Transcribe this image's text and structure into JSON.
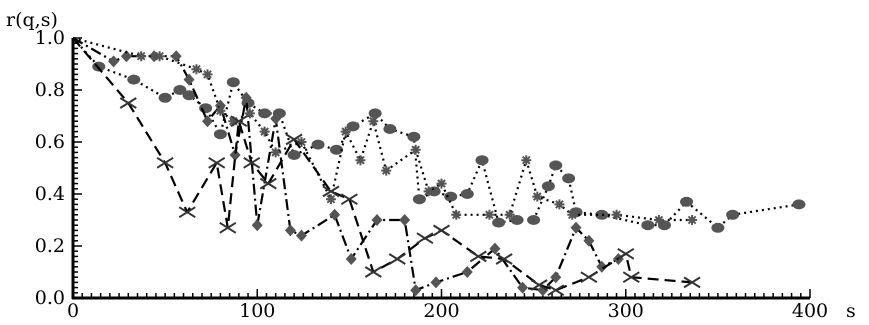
{
  "chart_data": {
    "type": "line",
    "title": "",
    "xlabel": "s",
    "ylabel": "r(q,s)",
    "xlim": [
      0,
      400
    ],
    "ylim": [
      0.0,
      1.0
    ],
    "x_ticks": [
      "0",
      "100",
      "200",
      "300",
      "400"
    ],
    "y_ticks": [
      "0.0",
      "0.2",
      "0.4",
      "0.6",
      "0.8",
      "1.0"
    ],
    "grid": false,
    "legend": "none",
    "series": [
      {
        "marker": "circle",
        "line_style": "dotted",
        "color": "#555555",
        "points": [
          [
            0,
            1.0
          ],
          [
            14,
            0.89
          ],
          [
            33,
            0.84
          ],
          [
            50,
            0.77
          ],
          [
            58,
            0.8
          ],
          [
            63,
            0.78
          ],
          [
            72,
            0.73
          ],
          [
            80,
            0.63
          ],
          [
            87,
            0.83
          ],
          [
            95,
            0.75
          ],
          [
            104,
            0.71
          ],
          [
            112,
            0.71
          ],
          [
            120,
            0.55
          ],
          [
            133,
            0.59
          ],
          [
            143,
            0.57
          ],
          [
            152,
            0.66
          ],
          [
            164,
            0.71
          ],
          [
            172,
            0.65
          ],
          [
            185,
            0.62
          ],
          [
            188,
            0.38
          ],
          [
            196,
            0.41
          ],
          [
            205,
            0.39
          ],
          [
            214,
            0.4
          ],
          [
            222,
            0.53
          ],
          [
            231,
            0.29
          ],
          [
            241,
            0.3
          ],
          [
            250,
            0.3
          ],
          [
            258,
            0.43
          ],
          [
            262,
            0.51
          ],
          [
            269,
            0.46
          ],
          [
            273,
            0.33
          ],
          [
            287,
            0.32
          ],
          [
            312,
            0.28
          ],
          [
            321,
            0.28
          ],
          [
            333,
            0.37
          ],
          [
            350,
            0.27
          ],
          [
            358,
            0.32
          ],
          [
            394,
            0.36
          ]
        ]
      },
      {
        "marker": "diamond",
        "line_style": "dash-dot",
        "color": "#555555",
        "points": [
          [
            0,
            1.0
          ],
          [
            22,
            0.91
          ],
          [
            29,
            0.93
          ],
          [
            44,
            0.93
          ],
          [
            56,
            0.93
          ],
          [
            63,
            0.84
          ],
          [
            73,
            0.68
          ],
          [
            80,
            0.74
          ],
          [
            88,
            0.55
          ],
          [
            94,
            0.77
          ],
          [
            100,
            0.28
          ],
          [
            110,
            0.69
          ],
          [
            118,
            0.26
          ],
          [
            124,
            0.24
          ],
          [
            142,
            0.32
          ],
          [
            151,
            0.15
          ],
          [
            165,
            0.3
          ],
          [
            180,
            0.3
          ],
          [
            186,
            0.03
          ],
          [
            197,
            0.06
          ],
          [
            214,
            0.1
          ],
          [
            229,
            0.19
          ],
          [
            244,
            0.04
          ],
          [
            255,
            0.03
          ],
          [
            262,
            0.08
          ],
          [
            273,
            0.27
          ],
          [
            280,
            0.22
          ],
          [
            287,
            0.12
          ],
          [
            296,
            0.15
          ]
        ]
      },
      {
        "marker": "asterisk",
        "line_style": "dotted",
        "color": "#555555",
        "points": [
          [
            0,
            1.0
          ],
          [
            37,
            0.93
          ],
          [
            47,
            0.93
          ],
          [
            67,
            0.88
          ],
          [
            73,
            0.86
          ],
          [
            80,
            0.72
          ],
          [
            87,
            0.68
          ],
          [
            96,
            0.71
          ],
          [
            104,
            0.64
          ],
          [
            110,
            0.56
          ],
          [
            124,
            0.6
          ],
          [
            140,
            0.38
          ],
          [
            148,
            0.64
          ],
          [
            156,
            0.53
          ],
          [
            163,
            0.68
          ],
          [
            170,
            0.49
          ],
          [
            186,
            0.57
          ],
          [
            193,
            0.41
          ],
          [
            200,
            0.44
          ],
          [
            208,
            0.32
          ],
          [
            226,
            0.32
          ],
          [
            237,
            0.32
          ],
          [
            246,
            0.53
          ],
          [
            252,
            0.39
          ],
          [
            264,
            0.36
          ],
          [
            271,
            0.32
          ],
          [
            295,
            0.32
          ],
          [
            318,
            0.3
          ],
          [
            336,
            0.3
          ]
        ]
      },
      {
        "marker": "cross",
        "line_style": "dashed",
        "color": "#333333",
        "points": [
          [
            0,
            1.0
          ],
          [
            30,
            0.75
          ],
          [
            50,
            0.52
          ],
          [
            62,
            0.33
          ],
          [
            78,
            0.52
          ],
          [
            84,
            0.27
          ],
          [
            90,
            0.68
          ],
          [
            97,
            0.52
          ],
          [
            106,
            0.44
          ],
          [
            120,
            0.61
          ],
          [
            140,
            0.41
          ],
          [
            150,
            0.38
          ],
          [
            163,
            0.1
          ],
          [
            176,
            0.15
          ],
          [
            191,
            0.23
          ],
          [
            200,
            0.26
          ],
          [
            220,
            0.16
          ],
          [
            234,
            0.15
          ],
          [
            253,
            0.05
          ],
          [
            262,
            0.03
          ],
          [
            280,
            0.08
          ],
          [
            300,
            0.17
          ],
          [
            303,
            0.08
          ],
          [
            336,
            0.06
          ]
        ]
      }
    ]
  }
}
